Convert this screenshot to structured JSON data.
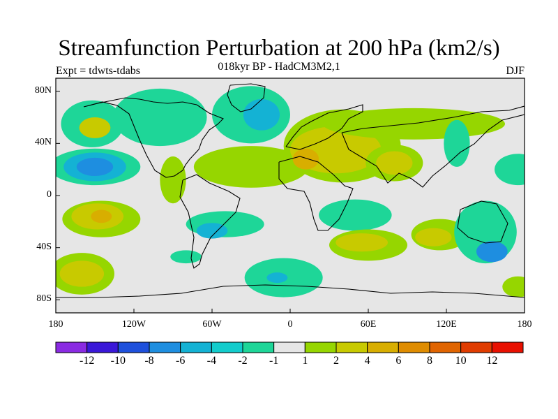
{
  "title": "Streamfunction Perturbation at 200 hPa (km2/s)",
  "subtitle": "018kyr BP - HadCM3M2,1",
  "experiment": "Expt = tdwts-tdabs",
  "season": "DJF",
  "axes": {
    "lat_labels": [
      {
        "lat": 80,
        "label": "80N"
      },
      {
        "lat": 40,
        "label": "40N"
      },
      {
        "lat": 0,
        "label": "0"
      },
      {
        "lat": -40,
        "label": "40S"
      },
      {
        "lat": -80,
        "label": "80S"
      }
    ],
    "lon_labels": [
      {
        "lon": -180,
        "label": "180"
      },
      {
        "lon": -120,
        "label": "120W"
      },
      {
        "lon": -60,
        "label": "60W"
      },
      {
        "lon": 0,
        "label": "0"
      },
      {
        "lon": 60,
        "label": "60E"
      },
      {
        "lon": 120,
        "label": "120E"
      },
      {
        "lon": 180,
        "label": "180"
      }
    ],
    "lon_range": [
      -180,
      180
    ],
    "lat_range": [
      -90,
      90
    ]
  },
  "colorbar": {
    "colors": [
      "#8a2be2",
      "#3a18d8",
      "#1e50dc",
      "#1e8ee0",
      "#14b2d4",
      "#12cccc",
      "#1ed698",
      "#e6e6e6",
      "#96d600",
      "#c8ca00",
      "#d8ae00",
      "#df8c00",
      "#e06400",
      "#e03c00",
      "#e81000"
    ],
    "labels": [
      "-12",
      "-10",
      "-8",
      "-6",
      "-4",
      "-2",
      "-1",
      "1",
      "2",
      "4",
      "6",
      "8",
      "10",
      "12"
    ]
  },
  "fields": [
    {
      "name": "n-pacific-green",
      "lon": -152,
      "lat": 55,
      "rx": 24,
      "ry": 18,
      "level": "-1"
    },
    {
      "name": "n-pacific-gold",
      "lon": -150,
      "lat": 52,
      "rx": 12,
      "ry": 8,
      "level": "4"
    },
    {
      "name": "c-pacific-green",
      "lon": -150,
      "lat": 22,
      "rx": 35,
      "ry": 14,
      "level": "-1"
    },
    {
      "name": "c-pacific-blue",
      "lon": -150,
      "lat": 22,
      "rx": 24,
      "ry": 11,
      "level": "-4"
    },
    {
      "name": "c-pacific-cyan",
      "lon": -150,
      "lat": 22,
      "rx": 14,
      "ry": 7,
      "level": "-6"
    },
    {
      "name": "n-america-green",
      "lon": -100,
      "lat": 60,
      "rx": 36,
      "ry": 22,
      "level": "-1"
    },
    {
      "name": "n-atlantic-green",
      "lon": -30,
      "lat": 62,
      "rx": 30,
      "ry": 22,
      "level": "-1"
    },
    {
      "name": "n-atlantic-blue",
      "lon": -22,
      "lat": 62,
      "rx": 14,
      "ry": 12,
      "level": "-4"
    },
    {
      "name": "atlantic-gold",
      "lon": -30,
      "lat": 22,
      "rx": 40,
      "ry": 13,
      "level": "4"
    },
    {
      "name": "atlantic-lime",
      "lon": -30,
      "lat": 22,
      "rx": 44,
      "ry": 16,
      "level": "2"
    },
    {
      "name": "caribbean-lime",
      "lon": -90,
      "lat": 12,
      "rx": 10,
      "ry": 18,
      "level": "2"
    },
    {
      "name": "eurasia-lime",
      "lon": 40,
      "lat": 38,
      "rx": 45,
      "ry": 28,
      "level": "2"
    },
    {
      "name": "eurasia-gold",
      "lon": 35,
      "lat": 35,
      "rx": 35,
      "ry": 18,
      "level": "4"
    },
    {
      "name": "africa-orange",
      "lon": 12,
      "lat": 28,
      "rx": 10,
      "ry": 8,
      "level": "6"
    },
    {
      "name": "siberia-lime",
      "lon": 95,
      "lat": 55,
      "rx": 70,
      "ry": 12,
      "level": "2"
    },
    {
      "name": "s-asia-lime",
      "lon": 80,
      "lat": 25,
      "rx": 22,
      "ry": 14,
      "level": "2"
    },
    {
      "name": "s-asia-gold",
      "lon": 80,
      "lat": 25,
      "rx": 14,
      "ry": 9,
      "level": "4"
    },
    {
      "name": "w-pacific-green",
      "lon": 128,
      "lat": 40,
      "rx": 10,
      "ry": 18,
      "level": "-1"
    },
    {
      "name": "e-asia-green",
      "lon": 175,
      "lat": 20,
      "rx": 18,
      "ry": 12,
      "level": "-1"
    },
    {
      "name": "s-pacific-lime",
      "lon": -145,
      "lat": -18,
      "rx": 30,
      "ry": 14,
      "level": "2"
    },
    {
      "name": "s-pacific-gold",
      "lon": -148,
      "lat": -16,
      "rx": 20,
      "ry": 10,
      "level": "4"
    },
    {
      "name": "s-pacific-orange",
      "lon": -145,
      "lat": -16,
      "rx": 8,
      "ry": 5,
      "level": "6"
    },
    {
      "name": "s-atlantic-green",
      "lon": -50,
      "lat": -22,
      "rx": 30,
      "ry": 10,
      "level": "-1"
    },
    {
      "name": "s-atlantic-cyan",
      "lon": -60,
      "lat": -27,
      "rx": 12,
      "ry": 6,
      "level": "-4"
    },
    {
      "name": "indian-green",
      "lon": 50,
      "lat": -15,
      "rx": 28,
      "ry": 12,
      "level": "-1"
    },
    {
      "name": "s-indian-lime",
      "lon": 60,
      "lat": -38,
      "rx": 30,
      "ry": 12,
      "level": "2"
    },
    {
      "name": "s-indian-gold",
      "lon": 55,
      "lat": -36,
      "rx": 20,
      "ry": 7,
      "level": "4"
    },
    {
      "name": "s-indian-lime-2",
      "lon": 115,
      "lat": -30,
      "rx": 22,
      "ry": 12,
      "level": "2"
    },
    {
      "name": "s-indian-gold-2",
      "lon": 110,
      "lat": -32,
      "rx": 14,
      "ry": 7,
      "level": "4"
    },
    {
      "name": "australia-green",
      "lon": 150,
      "lat": -28,
      "rx": 24,
      "ry": 24,
      "level": "-1"
    },
    {
      "name": "tasman-cyan",
      "lon": 155,
      "lat": -43,
      "rx": 12,
      "ry": 8,
      "level": "-6"
    },
    {
      "name": "s-pacific-green-2",
      "lon": -80,
      "lat": -47,
      "rx": 12,
      "ry": 5,
      "level": "-1"
    },
    {
      "name": "southern-lime-w",
      "lon": -160,
      "lat": -60,
      "rx": 25,
      "ry": 16,
      "level": "2"
    },
    {
      "name": "southern-gold-w",
      "lon": -160,
      "lat": -60,
      "rx": 17,
      "ry": 10,
      "level": "4"
    },
    {
      "name": "southern-green-e",
      "lon": -5,
      "lat": -63,
      "rx": 30,
      "ry": 15,
      "level": "-1"
    },
    {
      "name": "southern-blue-e",
      "lon": -10,
      "lat": -63,
      "rx": 8,
      "ry": 4,
      "level": "-4"
    },
    {
      "name": "antarctic-lime",
      "lon": 175,
      "lat": -70,
      "rx": 12,
      "ry": 8,
      "level": "2"
    },
    {
      "name": "n-pacific-edge-green",
      "lon": 176,
      "lat": 20,
      "rx": 10,
      "ry": 12,
      "level": "-1"
    }
  ]
}
